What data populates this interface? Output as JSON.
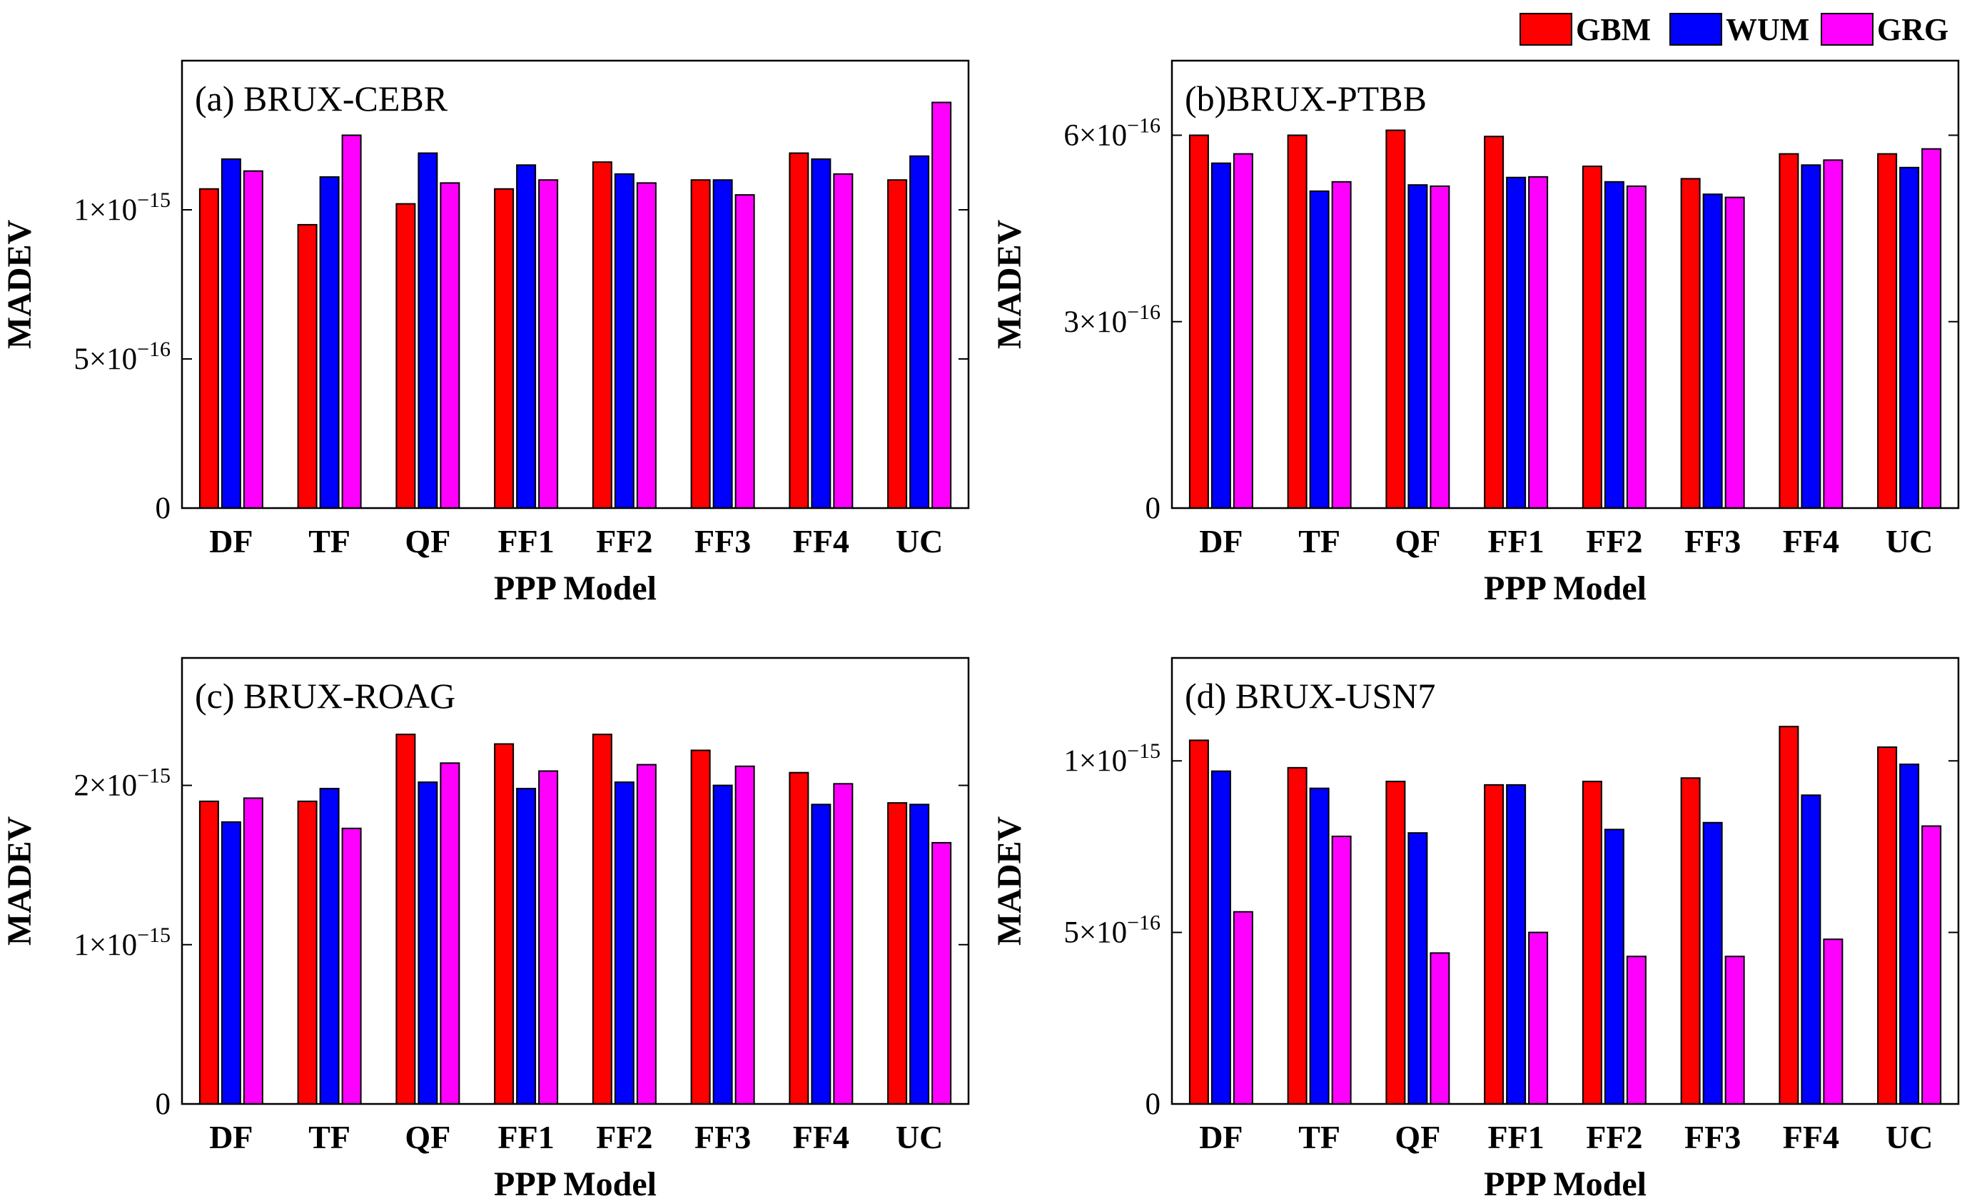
{
  "chart_data": [
    {
      "type": "bar",
      "title": "(a) BRUX-CEBR",
      "xlabel": "PPP Model",
      "ylabel": "MADEV",
      "categories": [
        "DF",
        "TF",
        "QF",
        "FF1",
        "FF2",
        "FF3",
        "FF4",
        "UC"
      ],
      "series": [
        {
          "name": "GBM",
          "values": [
            1.07e-15,
            9.5e-16,
            1.02e-15,
            1.07e-15,
            1.16e-15,
            1.1e-15,
            1.19e-15,
            1.1e-15
          ]
        },
        {
          "name": "WUM",
          "values": [
            1.17e-15,
            1.11e-15,
            1.19e-15,
            1.15e-15,
            1.12e-15,
            1.1e-15,
            1.17e-15,
            1.18e-15
          ]
        },
        {
          "name": "GRG",
          "values": [
            1.13e-15,
            1.25e-15,
            1.09e-15,
            1.1e-15,
            1.09e-15,
            1.05e-15,
            1.12e-15,
            1.36e-15
          ]
        }
      ],
      "ylim": [
        0,
        1.5e-15
      ],
      "yticks": [
        0,
        5e-16,
        1e-15
      ],
      "ytick_labels": [
        {
          "base": "0",
          "exp": ""
        },
        {
          "base": "5×10",
          "exp": "−16"
        },
        {
          "base": "1×10",
          "exp": "−15"
        }
      ]
    },
    {
      "type": "bar",
      "title": "(b)BRUX-PTBB",
      "xlabel": "PPP Model",
      "ylabel": "MADEV",
      "categories": [
        "DF",
        "TF",
        "QF",
        "FF1",
        "FF2",
        "FF3",
        "FF4",
        "UC"
      ],
      "series": [
        {
          "name": "GBM",
          "values": [
            6e-16,
            6e-16,
            6.08e-16,
            5.98e-16,
            5.5e-16,
            5.3e-16,
            5.7e-16,
            5.7e-16
          ]
        },
        {
          "name": "WUM",
          "values": [
            5.55e-16,
            5.1e-16,
            5.2e-16,
            5.32e-16,
            5.25e-16,
            5.05e-16,
            5.52e-16,
            5.48e-16
          ]
        },
        {
          "name": "GRG",
          "values": [
            5.7e-16,
            5.25e-16,
            5.18e-16,
            5.33e-16,
            5.18e-16,
            5e-16,
            5.6e-16,
            5.78e-16
          ]
        }
      ],
      "ylim": [
        0,
        7.2e-16
      ],
      "yticks": [
        0,
        3e-16,
        6e-16
      ],
      "ytick_labels": [
        {
          "base": "0",
          "exp": ""
        },
        {
          "base": "3×10",
          "exp": "−16"
        },
        {
          "base": "6×10",
          "exp": "−16"
        }
      ]
    },
    {
      "type": "bar",
      "title": "(c) BRUX-ROAG",
      "xlabel": "PPP Model",
      "ylabel": "MADEV",
      "categories": [
        "DF",
        "TF",
        "QF",
        "FF1",
        "FF2",
        "FF3",
        "FF4",
        "UC"
      ],
      "series": [
        {
          "name": "GBM",
          "values": [
            1.9e-15,
            1.9e-15,
            2.32e-15,
            2.26e-15,
            2.32e-15,
            2.22e-15,
            2.08e-15,
            1.89e-15
          ]
        },
        {
          "name": "WUM",
          "values": [
            1.77e-15,
            1.98e-15,
            2.02e-15,
            1.98e-15,
            2.02e-15,
            2e-15,
            1.88e-15,
            1.88e-15
          ]
        },
        {
          "name": "GRG",
          "values": [
            1.92e-15,
            1.73e-15,
            2.14e-15,
            2.09e-15,
            2.13e-15,
            2.12e-15,
            2.01e-15,
            1.64e-15
          ]
        }
      ],
      "ylim": [
        0,
        2.8e-15
      ],
      "yticks": [
        0,
        1e-15,
        2e-15
      ],
      "ytick_labels": [
        {
          "base": "0",
          "exp": ""
        },
        {
          "base": "1×10",
          "exp": "−15"
        },
        {
          "base": "2×10",
          "exp": "−15"
        }
      ]
    },
    {
      "type": "bar",
      "title": "(d) BRUX-USN7",
      "xlabel": "PPP Model",
      "ylabel": "MADEV",
      "categories": [
        "DF",
        "TF",
        "QF",
        "FF1",
        "FF2",
        "FF3",
        "FF4",
        "UC"
      ],
      "series": [
        {
          "name": "GBM",
          "values": [
            1.06e-15,
            9.8e-16,
            9.4e-16,
            9.3e-16,
            9.4e-16,
            9.5e-16,
            1.1e-15,
            1.04e-15
          ]
        },
        {
          "name": "WUM",
          "values": [
            9.7e-16,
            9.2e-16,
            7.9e-16,
            9.3e-16,
            8e-16,
            8.2e-16,
            9e-16,
            9.9e-16
          ]
        },
        {
          "name": "GRG",
          "values": [
            5.6e-16,
            7.8e-16,
            4.4e-16,
            5e-16,
            4.3e-16,
            4.3e-16,
            4.8e-16,
            8.1e-16
          ]
        }
      ],
      "ylim": [
        0,
        1.3e-15
      ],
      "yticks": [
        0,
        5e-16,
        1e-15
      ],
      "ytick_labels": [
        {
          "base": "0",
          "exp": ""
        },
        {
          "base": "5×10",
          "exp": "−16"
        },
        {
          "base": "1×10",
          "exp": "−15"
        }
      ]
    }
  ],
  "legend": {
    "position": "top-right",
    "items": [
      {
        "name": "GBM",
        "color": "#ff0000"
      },
      {
        "name": "WUM",
        "color": "#0000ff"
      },
      {
        "name": "GRG",
        "color": "#ff00ff"
      }
    ]
  },
  "series_colors": [
    "#ff0000",
    "#0000ff",
    "#ff00ff"
  ]
}
